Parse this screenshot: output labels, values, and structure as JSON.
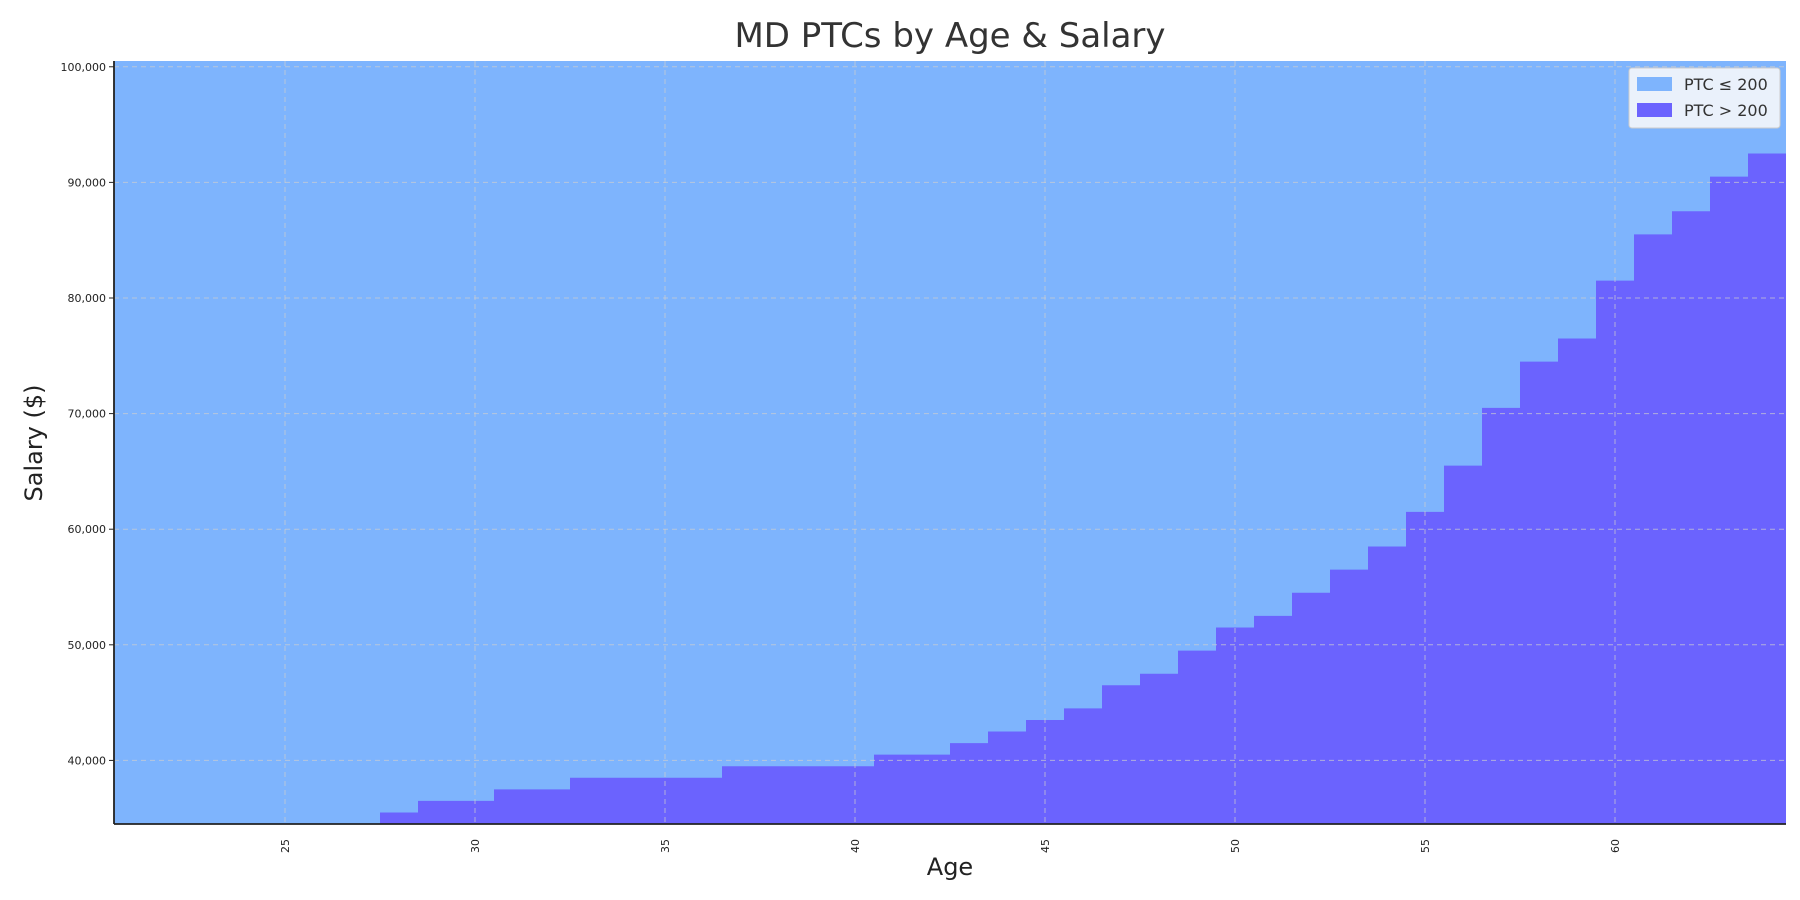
{
  "chart_data": {
    "type": "area",
    "title": "MD PTCs by Age & Salary",
    "xlabel": "Age",
    "ylabel": "Salary ($)",
    "xlim": [
      20.5,
      64.5
    ],
    "ylim": [
      34500,
      100500
    ],
    "x_ticks": [
      25,
      30,
      35,
      40,
      45,
      50,
      55,
      60
    ],
    "x_tick_labels": [
      "25",
      "30",
      "35",
      "40",
      "45",
      "50",
      "55",
      "60"
    ],
    "y_ticks": [
      40000,
      50000,
      60000,
      70000,
      80000,
      90000,
      100000
    ],
    "y_tick_labels": [
      "40,000",
      "50,000",
      "60,000",
      "70,000",
      "80,000",
      "90,000",
      "100,000"
    ],
    "grid": true,
    "legend_position": "top-right",
    "step": "mid",
    "series": [
      {
        "name": "PTC ≤ 200",
        "color": "#7eb4fd",
        "description_region": "salary above threshold up to top of range"
      },
      {
        "name": "PTC > 200",
        "color": "#6b63fe",
        "description_region": "salary from bottom of range up to threshold"
      }
    ],
    "ages": [
      21,
      22,
      23,
      24,
      25,
      26,
      27,
      28,
      29,
      30,
      31,
      32,
      33,
      34,
      35,
      36,
      37,
      38,
      39,
      40,
      41,
      42,
      43,
      44,
      45,
      46,
      47,
      48,
      49,
      50,
      51,
      52,
      53,
      54,
      55,
      56,
      57,
      58,
      59,
      60,
      61,
      62,
      63,
      64
    ],
    "threshold_salary": [
      34500,
      34500,
      34500,
      34500,
      34500,
      34500,
      34500,
      35500,
      36500,
      36500,
      37500,
      37500,
      38500,
      38500,
      38500,
      38500,
      39500,
      39500,
      39500,
      39500,
      40500,
      40500,
      41500,
      42500,
      43500,
      44500,
      46500,
      47500,
      49500,
      51500,
      52500,
      54500,
      56500,
      58500,
      61500,
      65500,
      70500,
      74500,
      76500,
      81500,
      85500,
      87500,
      90500,
      92500
    ]
  }
}
